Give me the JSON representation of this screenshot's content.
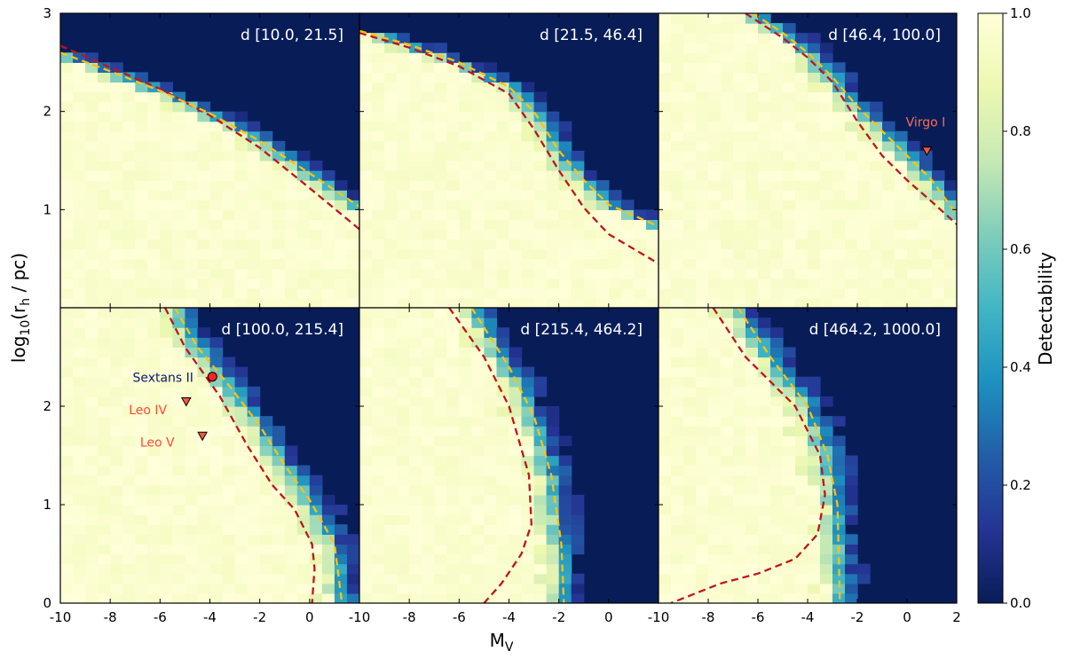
{
  "chart_data": {
    "type": "heatmap",
    "xlabel": "M",
    "xlabel_sub": "V",
    "ylabel_prefix": "log",
    "ylabel_sub1": "10",
    "ylabel_mid": "(r",
    "ylabel_sub2": "h",
    "ylabel_suffix": " / pc)",
    "xlim": [
      -10,
      2
    ],
    "ylim": [
      0,
      3
    ],
    "x_ticks": [
      -10,
      -8,
      -6,
      -4,
      -2,
      0
    ],
    "x_ticks_last": [
      -10,
      -8,
      -6,
      -4,
      -2,
      0,
      2
    ],
    "x_tick_labels": [
      "-10",
      "-8",
      "-6",
      "-4",
      "-2",
      "0"
    ],
    "x_tick_labels_last": [
      "-10",
      "-8",
      "-6",
      "-4",
      "-2",
      "0",
      "2"
    ],
    "y_ticks_top": [
      1,
      2,
      3
    ],
    "y_ticks_bottom": [
      0,
      1,
      2
    ],
    "y_tick_labels_top": [
      "1",
      "2",
      "3"
    ],
    "y_tick_labels_bottom": [
      "0",
      "1",
      "2"
    ],
    "colorbar": {
      "label": "Detectability",
      "range": [
        0.0,
        1.0
      ],
      "ticks": [
        0.0,
        0.2,
        0.4,
        0.6,
        0.8,
        1.0
      ],
      "tick_labels": [
        "0.0",
        "0.2",
        "0.4",
        "0.6",
        "0.8",
        "1.0"
      ],
      "colormap": [
        "#081d58",
        "#253494",
        "#225ea8",
        "#1d91c0",
        "#41b6c4",
        "#7fcdbb",
        "#c7e9b4",
        "#edf8b1",
        "#ffffd9"
      ]
    },
    "curve_colors": {
      "gold": "#ffc20e",
      "red": "#c0141f"
    },
    "panels": [
      {
        "title": "d [10.0, 21.5]",
        "gold_curve": [
          [
            -10,
            2.6
          ],
          [
            -8,
            2.41
          ],
          [
            -6,
            2.21
          ],
          [
            -4,
            1.98
          ],
          [
            -2,
            1.7
          ],
          [
            0,
            1.37
          ],
          [
            2,
            1.03
          ]
        ],
        "red_curve": [
          [
            -10,
            2.67
          ],
          [
            -8,
            2.45
          ],
          [
            -6,
            2.23
          ],
          [
            -4,
            1.96
          ],
          [
            -2,
            1.63
          ],
          [
            0,
            1.22
          ],
          [
            2,
            0.8
          ]
        ],
        "points": []
      },
      {
        "title": "d [21.5, 46.4]",
        "gold_curve": [
          [
            -10,
            2.82
          ],
          [
            -8,
            2.68
          ],
          [
            -6,
            2.5
          ],
          [
            -4,
            2.25
          ],
          [
            -3,
            2.0
          ],
          [
            -2,
            1.6
          ],
          [
            -1,
            1.3
          ],
          [
            0,
            1.05
          ],
          [
            2,
            0.83
          ]
        ],
        "red_curve": [
          [
            -10,
            2.8
          ],
          [
            -8,
            2.65
          ],
          [
            -6,
            2.46
          ],
          [
            -4,
            2.18
          ],
          [
            -3,
            1.82
          ],
          [
            -2,
            1.4
          ],
          [
            -1,
            1.02
          ],
          [
            0,
            0.75
          ],
          [
            2,
            0.45
          ]
        ],
        "points": []
      },
      {
        "title": "d [46.4, 100.0]",
        "gold_curve": [
          [
            -6.2,
            3.0
          ],
          [
            -5,
            2.8
          ],
          [
            -4,
            2.6
          ],
          [
            -3,
            2.35
          ],
          [
            -2,
            2.05
          ],
          [
            -1,
            1.8
          ],
          [
            0,
            1.55
          ],
          [
            1,
            1.3
          ],
          [
            2,
            0.95
          ]
        ],
        "red_curve": [
          [
            -6.5,
            3.0
          ],
          [
            -5,
            2.75
          ],
          [
            -4,
            2.55
          ],
          [
            -3,
            2.3
          ],
          [
            -2,
            1.9
          ],
          [
            -1,
            1.55
          ],
          [
            0,
            1.3
          ],
          [
            1,
            1.08
          ],
          [
            2,
            0.85
          ]
        ],
        "points": [
          {
            "label": "Virgo I",
            "x": 0.8,
            "y": 1.6,
            "marker": "triangle",
            "color": "#ef5a3b",
            "text_color": "#ff6a4f",
            "label_x": -0.05,
            "label_y": 1.85
          }
        ]
      },
      {
        "title": "d [100.0, 215.4]",
        "gold_curve": [
          [
            -5.4,
            3.0
          ],
          [
            -4.5,
            2.6
          ],
          [
            -3.2,
            2.2
          ],
          [
            -2,
            1.8
          ],
          [
            -1,
            1.4
          ],
          [
            0,
            1.05
          ],
          [
            1,
            0.6
          ],
          [
            1.3,
            0.0
          ]
        ],
        "red_curve": [
          [
            -5.8,
            3.0
          ],
          [
            -5,
            2.6
          ],
          [
            -3.6,
            2.1
          ],
          [
            -2.5,
            1.6
          ],
          [
            -1.5,
            1.2
          ],
          [
            -0.6,
            0.95
          ],
          [
            0.1,
            0.6
          ],
          [
            0.2,
            0.35
          ],
          [
            0.1,
            0.0
          ]
        ],
        "points": [
          {
            "label": "Sextans II",
            "x": -3.9,
            "y": 2.3,
            "marker": "circle",
            "color": "#ff2222",
            "text_color": "#0c1a6b",
            "label_x": -7.1,
            "label_y": 2.25
          },
          {
            "label": "Leo IV",
            "x": -4.95,
            "y": 2.05,
            "marker": "triangle",
            "color": "#ef5a3b",
            "text_color": "#ff4a2f",
            "label_x": -7.25,
            "label_y": 1.92
          },
          {
            "label": "Leo V",
            "x": -4.3,
            "y": 1.7,
            "marker": "triangle",
            "color": "#ef5a3b",
            "text_color": "#ff4a2f",
            "label_x": -6.8,
            "label_y": 1.59
          }
        ]
      },
      {
        "title": "d [215.4, 464.2]",
        "gold_curve": [
          [
            -5.5,
            3.0
          ],
          [
            -4,
            2.4
          ],
          [
            -3,
            1.9
          ],
          [
            -2.3,
            1.3
          ],
          [
            -1.9,
            0.6
          ],
          [
            -1.8,
            0.0
          ]
        ],
        "red_curve": [
          [
            -6.4,
            3.0
          ],
          [
            -5,
            2.5
          ],
          [
            -4,
            2.0
          ],
          [
            -3.2,
            1.3
          ],
          [
            -3.1,
            0.8
          ],
          [
            -3.5,
            0.5
          ],
          [
            -4.3,
            0.2
          ],
          [
            -5.0,
            0.0
          ]
        ],
        "points": []
      },
      {
        "title": "d [464.2, 1000.0]",
        "gold_curve": [
          [
            -6.8,
            3.0
          ],
          [
            -5.5,
            2.5
          ],
          [
            -4,
            2.0
          ],
          [
            -3.2,
            1.5
          ],
          [
            -2.8,
            1.0
          ],
          [
            -2.7,
            0.0
          ]
        ],
        "red_curve": [
          [
            -7.8,
            3.0
          ],
          [
            -6.5,
            2.5
          ],
          [
            -4.5,
            2.0
          ],
          [
            -3.5,
            1.5
          ],
          [
            -3.3,
            1.1
          ],
          [
            -3.6,
            0.7
          ],
          [
            -4.5,
            0.45
          ],
          [
            -6.0,
            0.3
          ],
          [
            -7.5,
            0.2
          ],
          [
            -9.5,
            0.0
          ]
        ],
        "points": []
      }
    ]
  }
}
